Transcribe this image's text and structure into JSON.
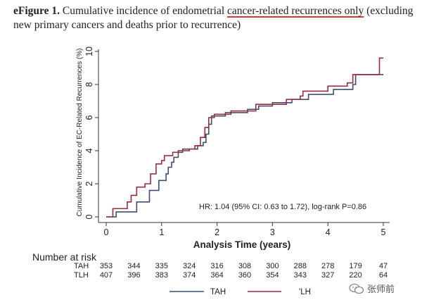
{
  "caption": {
    "bold": "eFigure 1.",
    "pre": " Cumulative incidence of endometrial ",
    "highlight": "cancer-related recurrences only",
    "post": " (excluding new primary cancers and deaths prior to recurrence)"
  },
  "chart_data": {
    "type": "line",
    "step": true,
    "xlabel": "Analysis Time (years)",
    "ylabel": "Cumulative Incidence of EC-Related Recurrences (%)",
    "xlim": [
      0,
      5
    ],
    "ylim": [
      0,
      10
    ],
    "x_ticks": [
      0,
      1,
      2,
      3,
      4,
      5
    ],
    "y_ticks": [
      0,
      2,
      4,
      6,
      8,
      10
    ],
    "grid": false,
    "annotation": "HR: 1.04 (95% CI: 0.63 to 1.72), log-rank P=0.86",
    "legend_position": "bottom",
    "series": [
      {
        "name": "TAH",
        "color": "#3d4f6e",
        "points": [
          [
            0,
            0
          ],
          [
            0.18,
            0.3
          ],
          [
            0.5,
            0.3
          ],
          [
            0.55,
            0.9
          ],
          [
            0.75,
            0.9
          ],
          [
            0.78,
            1.6
          ],
          [
            0.9,
            1.6
          ],
          [
            0.95,
            2.2
          ],
          [
            1.05,
            2.2
          ],
          [
            1.08,
            2.6
          ],
          [
            1.12,
            3.0
          ],
          [
            1.18,
            3.3
          ],
          [
            1.22,
            3.6
          ],
          [
            1.3,
            3.9
          ],
          [
            1.38,
            4.1
          ],
          [
            1.6,
            4.1
          ],
          [
            1.65,
            4.3
          ],
          [
            1.75,
            4.5
          ],
          [
            1.8,
            5.0
          ],
          [
            1.85,
            5.6
          ],
          [
            1.9,
            6.1
          ],
          [
            2.1,
            6.1
          ],
          [
            2.15,
            6.3
          ],
          [
            2.5,
            6.3
          ],
          [
            2.55,
            6.5
          ],
          [
            2.75,
            6.7
          ],
          [
            2.95,
            6.7
          ],
          [
            3.0,
            6.9
          ],
          [
            3.3,
            6.9
          ],
          [
            3.35,
            7.1
          ],
          [
            3.6,
            7.1
          ],
          [
            3.65,
            7.4
          ],
          [
            4.05,
            7.4
          ],
          [
            4.1,
            7.7
          ],
          [
            4.4,
            7.7
          ],
          [
            4.45,
            8.0
          ],
          [
            4.5,
            8.6
          ],
          [
            5.0,
            8.6
          ]
        ]
      },
      {
        "name": "LH",
        "color": "#9b2b44",
        "points": [
          [
            0,
            0
          ],
          [
            0.12,
            0.5
          ],
          [
            0.35,
            0.5
          ],
          [
            0.38,
            0.9
          ],
          [
            0.45,
            1.3
          ],
          [
            0.55,
            1.8
          ],
          [
            0.7,
            2.0
          ],
          [
            0.8,
            2.6
          ],
          [
            0.9,
            3.2
          ],
          [
            1.0,
            3.4
          ],
          [
            1.05,
            3.7
          ],
          [
            1.2,
            3.9
          ],
          [
            1.3,
            4.0
          ],
          [
            1.5,
            4.1
          ],
          [
            1.6,
            4.3
          ],
          [
            1.7,
            4.8
          ],
          [
            1.78,
            5.4
          ],
          [
            1.85,
            6.0
          ],
          [
            1.95,
            6.2
          ],
          [
            2.1,
            6.2
          ],
          [
            2.25,
            6.4
          ],
          [
            2.6,
            6.4
          ],
          [
            2.7,
            6.8
          ],
          [
            3.15,
            6.8
          ],
          [
            3.25,
            7.1
          ],
          [
            3.5,
            7.3
          ],
          [
            3.55,
            7.6
          ],
          [
            3.95,
            7.6
          ],
          [
            4.0,
            7.9
          ],
          [
            4.3,
            7.9
          ],
          [
            4.35,
            8.1
          ],
          [
            4.45,
            8.6
          ],
          [
            4.9,
            8.6
          ],
          [
            4.93,
            9.6
          ],
          [
            5.0,
            9.6
          ]
        ]
      }
    ]
  },
  "risk_table": {
    "title": "Number at risk",
    "rows": [
      {
        "label": "TAH",
        "values": [
          "353",
          "344",
          "335",
          "324",
          "316",
          "308",
          "300",
          "288",
          "278",
          "179",
          "47"
        ]
      },
      {
        "label": "TLH",
        "values": [
          "407",
          "396",
          "383",
          "374",
          "364",
          "360",
          "354",
          "343",
          "327",
          "220",
          "64"
        ]
      }
    ],
    "times": [
      0,
      0.5,
      1,
      1.5,
      2,
      2.5,
      3,
      3.5,
      4,
      4.5,
      5
    ]
  },
  "legend": [
    {
      "label": "TAH",
      "color": "#3d4f6e"
    },
    {
      "label": "'LH",
      "color": "#9b2b44"
    }
  ],
  "watermark": {
    "text": "张师前",
    "icon": "wechat-logo-icon"
  }
}
